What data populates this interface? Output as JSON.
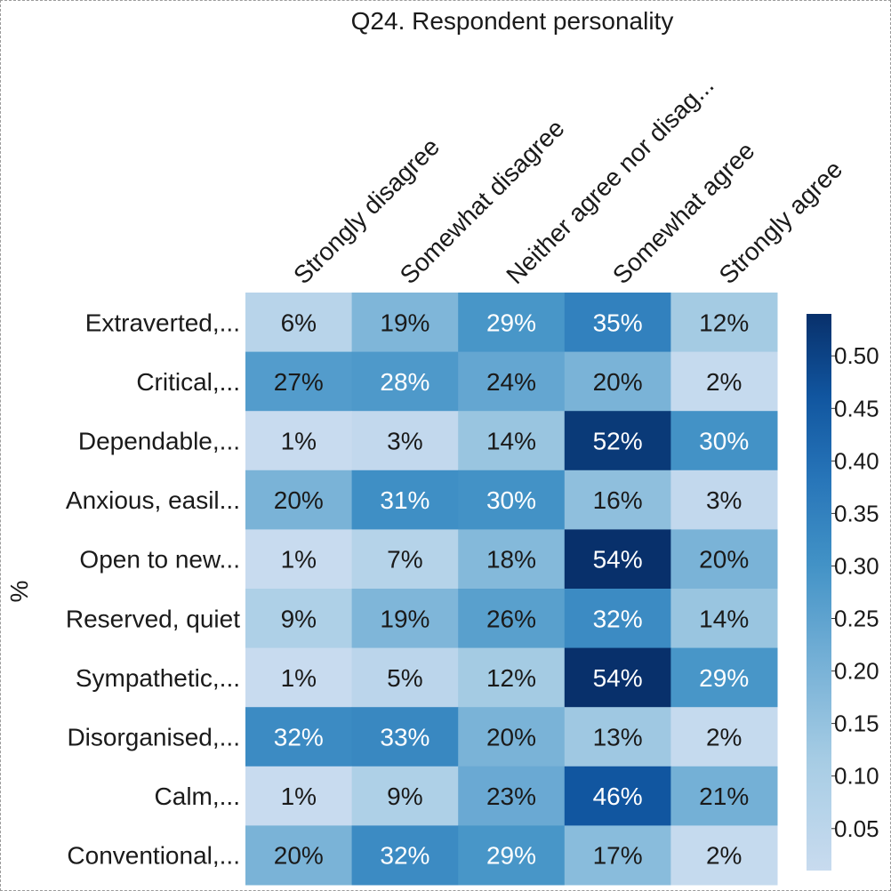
{
  "chart_data": {
    "type": "heatmap",
    "title": "Q24. Respondent personality",
    "ylabel": "%",
    "columns": [
      "Strongly disagree",
      "Somewhat disagree",
      "Neither agree nor disag...",
      "Somewhat agree",
      "Strongly agree"
    ],
    "rows": [
      "Extraverted,...",
      "Critical,...",
      "Dependable,...",
      "Anxious, easil...",
      "Open to new...",
      "Reserved, quiet",
      "Sympathetic,...",
      "Disorganised,...",
      "Calm,...",
      "Conventional,..."
    ],
    "values": [
      [
        0.06,
        0.19,
        0.29,
        0.35,
        0.12
      ],
      [
        0.27,
        0.28,
        0.24,
        0.2,
        0.02
      ],
      [
        0.01,
        0.03,
        0.14,
        0.52,
        0.3
      ],
      [
        0.2,
        0.31,
        0.3,
        0.16,
        0.03
      ],
      [
        0.01,
        0.07,
        0.18,
        0.54,
        0.2
      ],
      [
        0.09,
        0.19,
        0.26,
        0.32,
        0.14
      ],
      [
        0.01,
        0.05,
        0.12,
        0.54,
        0.29
      ],
      [
        0.32,
        0.33,
        0.2,
        0.13,
        0.02
      ],
      [
        0.01,
        0.09,
        0.23,
        0.46,
        0.21
      ],
      [
        0.2,
        0.32,
        0.29,
        0.17,
        0.02
      ]
    ],
    "cell_labels": [
      [
        "6%",
        "19%",
        "29%",
        "35%",
        "12%"
      ],
      [
        "27%",
        "28%",
        "24%",
        "20%",
        "2%"
      ],
      [
        "1%",
        "3%",
        "14%",
        "52%",
        "30%"
      ],
      [
        "20%",
        "31%",
        "30%",
        "16%",
        "3%"
      ],
      [
        "1%",
        "7%",
        "18%",
        "54%",
        "20%"
      ],
      [
        "9%",
        "19%",
        "26%",
        "32%",
        "14%"
      ],
      [
        "1%",
        "5%",
        "12%",
        "54%",
        "29%"
      ],
      [
        "32%",
        "33%",
        "20%",
        "13%",
        "2%"
      ],
      [
        "1%",
        "9%",
        "23%",
        "46%",
        "21%"
      ],
      [
        "20%",
        "32%",
        "29%",
        "17%",
        "2%"
      ]
    ],
    "colorbar": {
      "range": [
        0.01,
        0.54
      ],
      "ticks": [
        0.05,
        0.1,
        0.15,
        0.2,
        0.25,
        0.3,
        0.35,
        0.4,
        0.45,
        0.5
      ],
      "tick_labels": [
        "0.05",
        "0.10",
        "0.15",
        "0.20",
        "0.25",
        "0.30",
        "0.35",
        "0.40",
        "0.45",
        "0.50"
      ],
      "colormap": "Blues"
    }
  }
}
